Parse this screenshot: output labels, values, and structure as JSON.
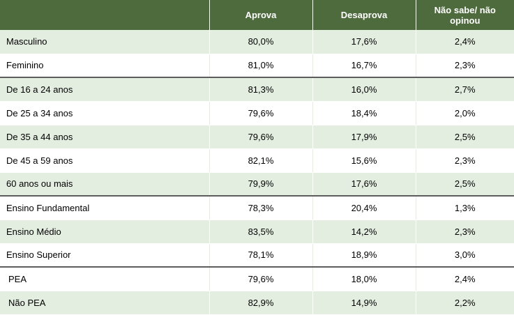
{
  "table": {
    "headers": [
      "",
      "Aprova",
      "Desaprova",
      "Não sabe/ não opinou"
    ],
    "rows": [
      {
        "label": "Masculino",
        "values": [
          "80,0%",
          "17,6%",
          "2,4%"
        ]
      },
      {
        "label": "Feminino",
        "values": [
          "81,0%",
          "16,7%",
          "2,3%"
        ]
      },
      {
        "label": "De 16 a 24 anos",
        "values": [
          "81,3%",
          "16,0%",
          "2,7%"
        ]
      },
      {
        "label": "De 25 a 34 anos",
        "values": [
          "79,6%",
          "18,4%",
          "2,0%"
        ]
      },
      {
        "label": "De 35 a 44 anos",
        "values": [
          "79,6%",
          "17,9%",
          "2,5%"
        ]
      },
      {
        "label": "De 45 a 59 anos",
        "values": [
          "82,1%",
          "15,6%",
          "2,3%"
        ]
      },
      {
        "label": "60 anos ou mais",
        "values": [
          "79,9%",
          "17,6%",
          "2,5%"
        ]
      },
      {
        "label": "Ensino Fundamental",
        "values": [
          "78,3%",
          "20,4%",
          "1,3%"
        ]
      },
      {
        "label": "Ensino Médio",
        "values": [
          "83,5%",
          "14,2%",
          "2,3%"
        ]
      },
      {
        "label": "Ensino Superior",
        "values": [
          "78,1%",
          "18,9%",
          "3,0%"
        ]
      },
      {
        "label": "PEA",
        "values": [
          "79,6%",
          "18,0%",
          "2,4%"
        ]
      },
      {
        "label": "Não PEA",
        "values": [
          "82,9%",
          "14,9%",
          "2,2%"
        ]
      }
    ]
  },
  "colors": {
    "header_background": "#4d6b3c",
    "row_shade": "#e3eee0",
    "group_divider": "#5c5c5c"
  }
}
